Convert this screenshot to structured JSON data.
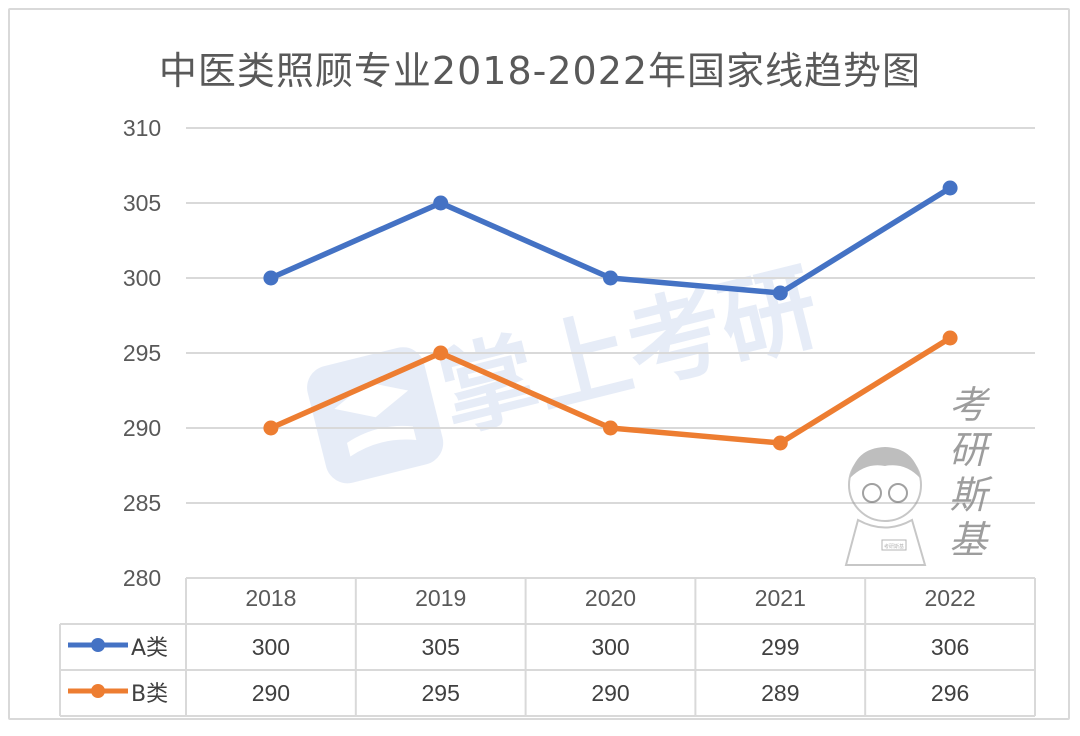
{
  "chart_data": {
    "type": "line",
    "title": "中医类照顾专业2018-2022年国家线趋势图",
    "categories": [
      "2018",
      "2019",
      "2020",
      "2021",
      "2022"
    ],
    "series": [
      {
        "name": "A类",
        "values": [
          300,
          305,
          300,
          299,
          306
        ],
        "color": "#4472c4"
      },
      {
        "name": "B类",
        "values": [
          290,
          295,
          290,
          289,
          296
        ],
        "color": "#ed7d31"
      }
    ],
    "ylim": [
      280,
      310
    ],
    "yticks": [
      "280",
      "285",
      "290",
      "295",
      "300",
      "305",
      "310"
    ],
    "grid": true,
    "legend": "data-table",
    "xlabel": "",
    "ylabel": ""
  },
  "watermark": {
    "brand": "掌上考研",
    "side_text": [
      "考",
      "研",
      "斯",
      "基"
    ],
    "badge_text": "考研斯基"
  }
}
